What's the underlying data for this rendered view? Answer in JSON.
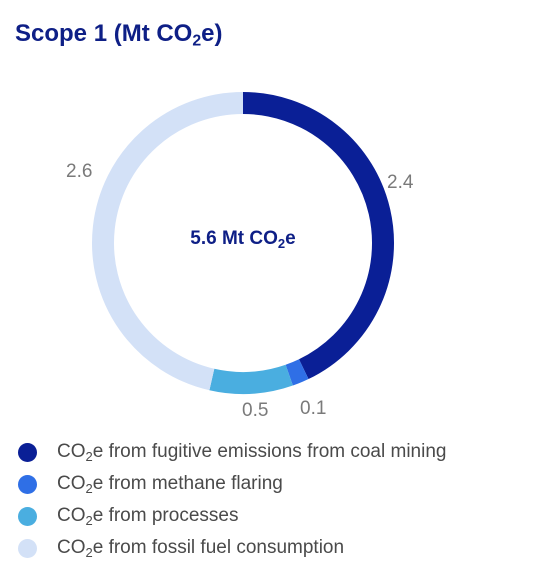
{
  "colors": {
    "title": "#0e1f86",
    "fugitive": "#0a1f96",
    "flaring": "#2f6fe6",
    "processes": "#4aaee0",
    "fossil": "#d3e1f7"
  },
  "chart_data": {
    "type": "pie",
    "style": "donut",
    "title": {
      "prefix": "Scope 1 (Mt CO",
      "sub": "2",
      "suffix": "e)"
    },
    "center_label": {
      "prefix": "5.6 Mt CO",
      "sub": "2",
      "suffix": "e"
    },
    "legend_position": "bottom",
    "slices": [
      {
        "value": 2.4,
        "value_label": "2.4",
        "color": "#0a1f96",
        "legend": {
          "prefix": "CO",
          "sub": "2",
          "suffix": "e from fugitive emissions from coal mining"
        }
      },
      {
        "value": 0.1,
        "value_label": "0.1",
        "color": "#2f6fe6",
        "legend": {
          "prefix": "CO",
          "sub": "2",
          "suffix": "e from methane flaring"
        }
      },
      {
        "value": 0.5,
        "value_label": "0.5",
        "color": "#4aaee0",
        "legend": {
          "prefix": "CO",
          "sub": "2",
          "suffix": "e from processes"
        }
      },
      {
        "value": 2.6,
        "value_label": "2.6",
        "color": "#d3e1f7",
        "legend": {
          "prefix": "CO",
          "sub": "2",
          "suffix": "e from fossil fuel consumption"
        }
      }
    ]
  }
}
